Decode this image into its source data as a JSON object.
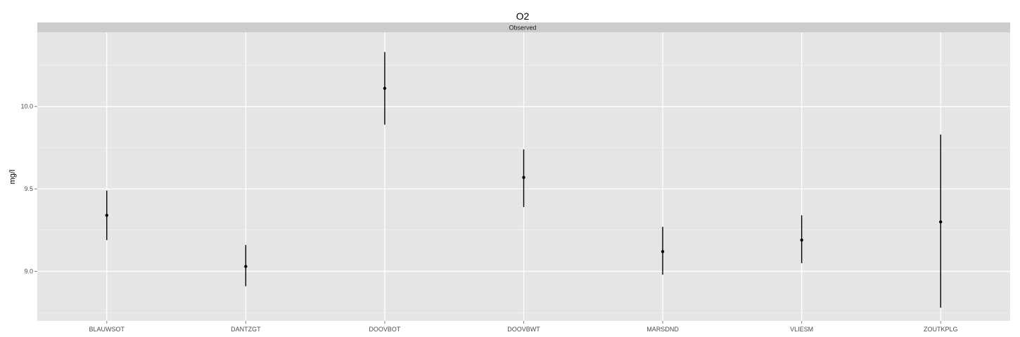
{
  "chart_data": {
    "type": "errorbar",
    "title": "O2",
    "facet_label": "Observed",
    "xlabel": "",
    "ylabel": "mg/l",
    "ylim": [
      8.7,
      10.45
    ],
    "yticks": [
      9.0,
      9.5,
      10.0
    ],
    "ytick_labels": [
      "9.0",
      "9.5",
      "10.0"
    ],
    "grid": true,
    "categories": [
      "BLAUWSOT",
      "DANTZGT",
      "DOOVBOT",
      "DOOVBWT",
      "MARSDND",
      "VLIESM",
      "ZOUTKPLG"
    ],
    "series": [
      {
        "mean": [
          9.34,
          9.03,
          10.11,
          9.57,
          9.12,
          9.19,
          9.3
        ],
        "lower": [
          9.19,
          8.91,
          9.89,
          9.39,
          8.98,
          9.05,
          8.78
        ],
        "upper": [
          9.49,
          9.16,
          10.33,
          9.74,
          9.27,
          9.34,
          9.83
        ]
      }
    ],
    "colors": {
      "panel": "#e5e5e5",
      "strip": "#cccccc",
      "grid_major": "#ffffff",
      "grid_minor": "#f2f2f2",
      "marks": "#000000"
    }
  }
}
